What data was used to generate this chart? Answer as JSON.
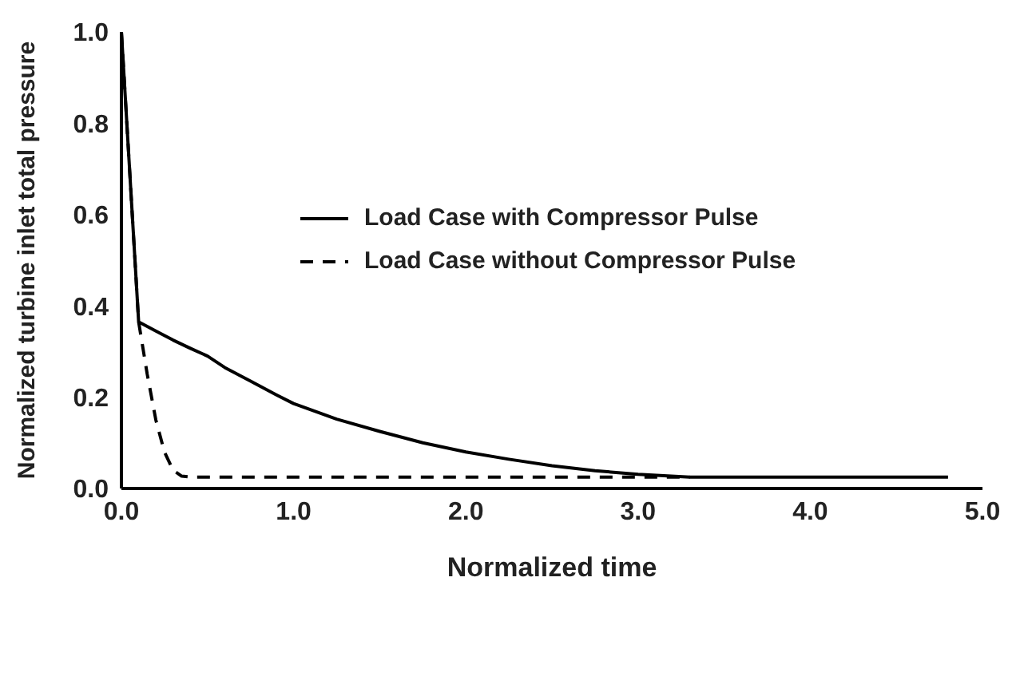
{
  "chart_data": {
    "type": "line",
    "xlabel": "Normalized time",
    "ylabel": "Normalized turbine inlet total pressure",
    "xlim": [
      0,
      5
    ],
    "ylim": [
      0,
      1
    ],
    "xticks": [
      {
        "value": 0,
        "label": "0.0"
      },
      {
        "value": 1,
        "label": "1.0"
      },
      {
        "value": 2,
        "label": "2.0"
      },
      {
        "value": 3,
        "label": "3.0"
      },
      {
        "value": 4,
        "label": "4.0"
      },
      {
        "value": 5,
        "label": "5.0"
      }
    ],
    "yticks": [
      {
        "value": 0,
        "label": "0.0"
      },
      {
        "value": 0.2,
        "label": "0.2"
      },
      {
        "value": 0.4,
        "label": "0.4"
      },
      {
        "value": 0.6,
        "label": "0.6"
      },
      {
        "value": 0.8,
        "label": "0.8"
      },
      {
        "value": 1,
        "label": "1.0"
      }
    ],
    "grid": false,
    "legend": "top left",
    "marker": "none",
    "series": [
      {
        "name": "Load Case with Compressor Pulse",
        "color": "#000000",
        "line_style": "solid",
        "x": [
          0,
          0.1,
          0.2,
          0.3,
          0.4,
          0.5,
          0.6,
          0.75,
          0.9,
          1.0,
          1.25,
          1.5,
          1.75,
          2.0,
          2.25,
          2.5,
          2.75,
          3.0,
          3.3,
          4.8
        ],
        "values": [
          1.0,
          0.365,
          0.345,
          0.325,
          0.307,
          0.29,
          0.265,
          0.235,
          0.205,
          0.186,
          0.152,
          0.125,
          0.1,
          0.08,
          0.064,
          0.05,
          0.039,
          0.031,
          0.025,
          0.025
        ]
      },
      {
        "name": "Load Case without Compressor Pulse",
        "color": "#000000",
        "line_style": "dashed",
        "x": [
          0,
          0.1,
          0.15,
          0.2,
          0.25,
          0.3,
          0.35,
          0.4,
          3.3
        ],
        "values": [
          1.0,
          0.365,
          0.25,
          0.15,
          0.08,
          0.04,
          0.027,
          0.025,
          0.025
        ]
      }
    ]
  }
}
